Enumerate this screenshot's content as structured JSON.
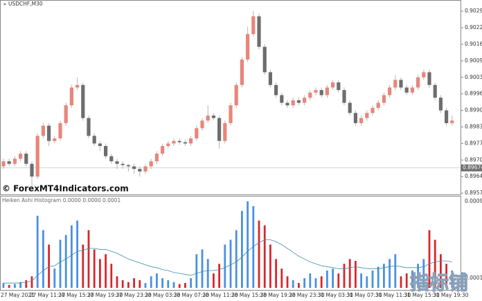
{
  "chart_data": [
    {
      "type": "candlestick",
      "title": "USDCHF,M30",
      "watermark": "© ForexMT4Indicators.com",
      "up_color": "#e8867b",
      "down_color": "#6d6d6d",
      "open": [
        0.8968,
        0.897,
        0.8969,
        0.8971,
        0.8973,
        0.8969,
        0.8964,
        0.898,
        0.8984,
        0.8978,
        0.8979,
        0.8985,
        0.8992,
        0.8999,
        0.9,
        0.8987,
        0.898,
        0.8977,
        0.8976,
        0.8972,
        0.897,
        0.8969,
        0.89685,
        0.8968,
        0.8967,
        0.8966,
        0.8968,
        0.897,
        0.8973,
        0.8976,
        0.8977,
        0.8978,
        0.89775,
        0.8977,
        0.8979,
        0.8983,
        0.8986,
        0.8988,
        0.8987,
        0.8978,
        0.8985,
        0.8992,
        0.9,
        0.901,
        0.902,
        0.9027,
        0.9015,
        0.9005,
        0.9,
        0.8996,
        0.8993,
        0.8992,
        0.8994,
        0.8993,
        0.8995,
        0.8997,
        0.8998,
        0.8996,
        0.8999,
        0.9001,
        0.8998,
        0.8993,
        0.8989,
        0.8985,
        0.8987,
        0.8989,
        0.8991,
        0.8993,
        0.8996,
        0.8999,
        0.9002,
        0.8999,
        0.8997,
        0.8999,
        0.9003,
        0.9005,
        0.9,
        0.8995,
        0.899,
        0.8985
      ],
      "high": [
        0.8971,
        0.8971,
        0.8972,
        0.8974,
        0.8974,
        0.897,
        0.8981,
        0.8985,
        0.8985,
        0.898,
        0.8986,
        0.8993,
        0.9,
        0.9003,
        0.9001,
        0.8988,
        0.8981,
        0.8978,
        0.8977,
        0.8973,
        0.8971,
        0.897,
        0.8969,
        0.8969,
        0.8968,
        0.8969,
        0.8971,
        0.8974,
        0.8977,
        0.8978,
        0.8979,
        0.8979,
        0.89785,
        0.898,
        0.8984,
        0.8987,
        0.8992,
        0.8989,
        0.8988,
        0.8986,
        0.8993,
        0.9001,
        0.9011,
        0.9023,
        0.9029,
        0.9028,
        0.9016,
        0.9006,
        0.9001,
        0.8997,
        0.8994,
        0.8995,
        0.8995,
        0.8996,
        0.8998,
        0.8999,
        0.8999,
        0.9,
        0.9002,
        0.9002,
        0.8999,
        0.8994,
        0.899,
        0.8988,
        0.899,
        0.8992,
        0.8994,
        0.8997,
        0.9,
        0.9004,
        0.9003,
        0.9,
        0.9,
        0.9004,
        0.9006,
        0.9006,
        0.9001,
        0.8996,
        0.8991,
        0.8988
      ],
      "low": [
        0.8967,
        0.8968,
        0.8968,
        0.897,
        0.8968,
        0.896,
        0.8963,
        0.8979,
        0.8976,
        0.8977,
        0.8978,
        0.8984,
        0.8991,
        0.8998,
        0.8986,
        0.8979,
        0.8976,
        0.8974,
        0.8971,
        0.8969,
        0.8967,
        0.8967,
        0.8966,
        0.8965,
        0.8964,
        0.8965,
        0.8967,
        0.8969,
        0.8972,
        0.8975,
        0.8976,
        0.89765,
        0.8976,
        0.8976,
        0.8978,
        0.8982,
        0.8985,
        0.8986,
        0.8975,
        0.8977,
        0.8984,
        0.8991,
        0.8999,
        0.9009,
        0.9019,
        0.9014,
        0.9004,
        0.8999,
        0.8995,
        0.8992,
        0.8991,
        0.8991,
        0.8992,
        0.8992,
        0.8994,
        0.8996,
        0.8995,
        0.8995,
        0.8998,
        0.8997,
        0.8992,
        0.8988,
        0.8984,
        0.8984,
        0.8986,
        0.8988,
        0.899,
        0.8992,
        0.8995,
        0.8998,
        0.8998,
        0.8996,
        0.8996,
        0.8998,
        0.9002,
        0.8999,
        0.8994,
        0.8989,
        0.8984,
        0.8984
      ],
      "close": [
        0.897,
        0.8969,
        0.8971,
        0.8973,
        0.8969,
        0.8964,
        0.898,
        0.8984,
        0.8978,
        0.8979,
        0.8985,
        0.8992,
        0.8999,
        0.9,
        0.8987,
        0.898,
        0.8977,
        0.8976,
        0.8972,
        0.897,
        0.8969,
        0.89685,
        0.8968,
        0.8967,
        0.8966,
        0.8968,
        0.897,
        0.8973,
        0.8976,
        0.8977,
        0.8978,
        0.89775,
        0.8977,
        0.8979,
        0.8983,
        0.8986,
        0.8988,
        0.8987,
        0.8978,
        0.8985,
        0.8992,
        0.9,
        0.901,
        0.902,
        0.9027,
        0.9015,
        0.9005,
        0.9,
        0.8996,
        0.8993,
        0.8992,
        0.8994,
        0.8993,
        0.8995,
        0.8997,
        0.8998,
        0.8996,
        0.8999,
        0.9001,
        0.8998,
        0.8993,
        0.8989,
        0.8985,
        0.8987,
        0.8989,
        0.8991,
        0.8993,
        0.8996,
        0.8999,
        0.9002,
        0.8999,
        0.8997,
        0.8999,
        0.9003,
        0.9005,
        0.9,
        0.8995,
        0.899,
        0.8985,
        0.8986
      ],
      "last_price": 0.89674,
      "ylim": [
        0.89567,
        0.90334
      ],
      "yticks": [
        {
          "value": 0.9029,
          "label": "0.90290"
        },
        {
          "value": 0.90225,
          "label": "0.90225"
        },
        {
          "value": 0.9016,
          "label": "0.90160"
        },
        {
          "value": 0.90095,
          "label": "0.90095"
        },
        {
          "value": 0.9003,
          "label": "0.90030"
        },
        {
          "value": 0.89965,
          "label": "0.89965"
        },
        {
          "value": 0.899,
          "label": "0.89900"
        },
        {
          "value": 0.89835,
          "label": "0.89835"
        },
        {
          "value": 0.8977,
          "label": "0.89770"
        },
        {
          "value": 0.89705,
          "label": "0.89705"
        },
        {
          "value": 0.8964,
          "label": "0.89640"
        },
        {
          "value": 0.89575,
          "label": "0.89575"
        }
      ],
      "time_labels": [
        "27 May 2021",
        "27 May 11:30",
        "27 May 15:30",
        "27 May 19:30",
        "27 May 23:30",
        "28 May 03:30",
        "28 May 07:30",
        "28 May 11:30",
        "28 May 15:30",
        "28 May 19:30",
        "28 May 23:30",
        "31 May 03:30",
        "31 May 07:30",
        "31 May 11:30",
        "31 May 15:30",
        "31 May 19:30"
      ]
    },
    {
      "type": "histogram",
      "title": "Heiken Ashi Histogram 0.0000 0.0000 0.0001",
      "up_color": "#4a90e2",
      "down_color": "#d8262b",
      "line_color": "#3a8fa8",
      "values": [
        5e-05,
        3e-05,
        4e-05,
        6e-05,
        8e-05,
        0.00012,
        0.00075,
        0.0006,
        0.00045,
        0.0002,
        0.0005,
        0.00055,
        0.00065,
        0.0007,
        0.00045,
        0.0006,
        0.0004,
        0.0003,
        0.00035,
        0.00025,
        0.00012,
        8e-05,
        6e-05,
        0.0001,
        8e-05,
        5e-05,
        0.00012,
        0.00015,
        0.0001,
        8e-05,
        6e-05,
        4e-05,
        5e-05,
        0.0001,
        0.00035,
        0.0004,
        0.0003,
        0.00015,
        0.00025,
        0.00045,
        0.0005,
        0.0006,
        0.0008,
        0.0009,
        0.00085,
        0.0007,
        0.00065,
        0.00045,
        0.0003,
        0.0002,
        0.00012,
        8e-05,
        5e-05,
        0.0001,
        0.00015,
        0.0001,
        0.00012,
        0.00018,
        0.0002,
        0.00015,
        0.00025,
        0.0003,
        0.00028,
        0.00015,
        0.00012,
        0.00018,
        0.00022,
        0.00025,
        0.0003,
        0.00035,
        0.00012,
        0.00015,
        0.00018,
        0.00025,
        0.0003,
        0.0006,
        0.0005,
        0.00035,
        0.00025,
        0.00018
      ],
      "average": [
        5e-05,
        5e-05,
        5e-05,
        5e-05,
        6e-05,
        7e-05,
        0.00013,
        0.00018,
        0.00022,
        0.00023,
        0.00027,
        0.0003,
        0.00034,
        0.00038,
        0.00039,
        0.00041,
        0.00041,
        0.0004,
        0.0004,
        0.00038,
        0.00036,
        0.00033,
        0.0003,
        0.00028,
        0.00026,
        0.00024,
        0.00022,
        0.00021,
        0.00019,
        0.00018,
        0.00016,
        0.00015,
        0.00014,
        0.00013,
        0.00015,
        0.00017,
        0.00018,
        0.00018,
        0.00019,
        0.00021,
        0.00024,
        0.00027,
        0.00032,
        0.00038,
        0.00043,
        0.00047,
        0.0005,
        0.0005,
        0.00048,
        0.00045,
        0.00041,
        0.00037,
        0.00033,
        0.0003,
        0.00027,
        0.00025,
        0.00023,
        0.00022,
        0.00021,
        0.0002,
        0.0002,
        0.00021,
        0.00022,
        0.00021,
        0.0002,
        0.0002,
        0.0002,
        0.00021,
        0.00022,
        0.00023,
        0.00022,
        0.00021,
        0.00021,
        0.00021,
        0.00022,
        0.00025,
        0.00027,
        0.00028,
        0.00028,
        0.00027
      ],
      "ylim": [
        0,
        0.00095
      ],
      "yticks": [
        0.0009,
        0.0001
      ]
    },
    {
      "type": "watermark",
      "text": "指标铺"
    }
  ]
}
